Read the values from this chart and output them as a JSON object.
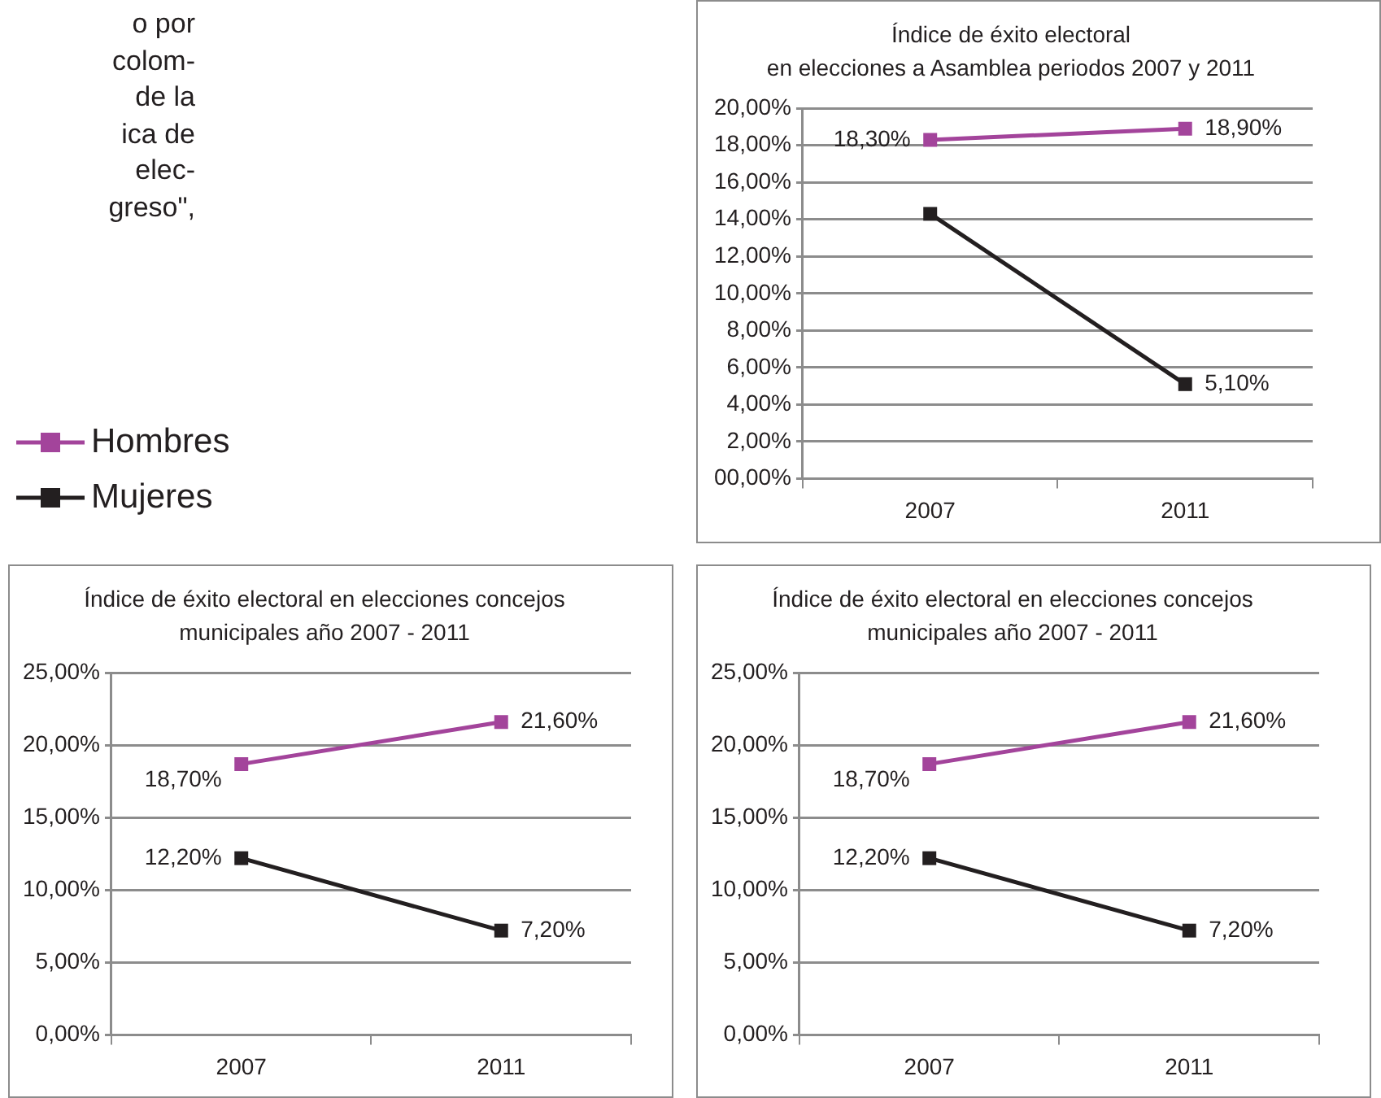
{
  "chart_data": [
    {
      "type": "line",
      "title": "Índice de éxito electoral en elecciones a Asamblea periodos 2007 y 2011",
      "categories": [
        "2007",
        "2011"
      ],
      "series": [
        {
          "name": "Hombres",
          "color": "#a3449b",
          "values": [
            18.3,
            18.9
          ],
          "value_labels": [
            "18,30%",
            "18,90%"
          ]
        },
        {
          "name": "Mujeres",
          "color": "#231f20",
          "values": [
            14.3,
            5.1
          ],
          "value_labels": [
            null,
            "5,10%"
          ]
        }
      ],
      "ylim": [
        0,
        20
      ],
      "yticks": [
        {
          "value": 0,
          "label": "00,00%"
        },
        {
          "value": 2,
          "label": "2,00%"
        },
        {
          "value": 4,
          "label": "4,00%"
        },
        {
          "value": 6,
          "label": "6,00%"
        },
        {
          "value": 8,
          "label": "8,00%"
        },
        {
          "value": 10,
          "label": "10,00%"
        },
        {
          "value": 12,
          "label": "12,00%"
        },
        {
          "value": 14,
          "label": "14,00%"
        },
        {
          "value": 16,
          "label": "16,00%"
        },
        {
          "value": 18,
          "label": "18,00%"
        },
        {
          "value": 20,
          "label": "20,00%"
        }
      ],
      "grid": "y",
      "legend": "left",
      "marker": "square",
      "line_style": "solid",
      "annotations": [
        "o por",
        "colom-",
        "de la",
        "ica de",
        "elec-",
        "greso\","
      ]
    },
    {
      "type": "line",
      "title": "Índice de éxito electoral en elecciones concejos municipales año 2007 - 2011",
      "categories": [
        "2007",
        "2011"
      ],
      "series": [
        {
          "color": "#a3449b",
          "values": [
            18.7,
            21.6
          ],
          "value_labels": [
            "18,70%",
            "21,60%"
          ]
        },
        {
          "color": "#231f20",
          "values": [
            12.2,
            7.2
          ],
          "value_labels": [
            "12,20%",
            "7,20%"
          ]
        }
      ],
      "ylim": [
        0,
        25
      ],
      "yticks": [
        {
          "value": 0,
          "label": "0,00%"
        },
        {
          "value": 5,
          "label": "5,00%"
        },
        {
          "value": 10,
          "label": "10,00%"
        },
        {
          "value": 15,
          "label": "15,00%"
        },
        {
          "value": 20,
          "label": "20,00%"
        },
        {
          "value": 25,
          "label": "25,00%"
        }
      ],
      "grid": "y",
      "marker": "square",
      "line_style": "solid"
    },
    {
      "type": "line",
      "title": "Índice de éxito electoral en elecciones concejos municipales año 2007 - 2011",
      "categories": [
        "2007",
        "2011"
      ],
      "series": [
        {
          "color": "#a3449b",
          "values": [
            18.7,
            21.6
          ],
          "value_labels": [
            "18,70%",
            "21,60%"
          ]
        },
        {
          "color": "#231f20",
          "values": [
            12.2,
            7.2
          ],
          "value_labels": [
            "12,20%",
            "7,20%"
          ]
        }
      ],
      "ylim": [
        0,
        25
      ],
      "yticks": [
        {
          "value": 0,
          "label": "0,00%"
        },
        {
          "value": 5,
          "label": "5,00%"
        },
        {
          "value": 10,
          "label": "10,00%"
        },
        {
          "value": 15,
          "label": "15,00%"
        },
        {
          "value": 20,
          "label": "20,00%"
        },
        {
          "value": 25,
          "label": "25,00%"
        }
      ],
      "grid": "y",
      "marker": "square",
      "line_style": "solid"
    }
  ]
}
